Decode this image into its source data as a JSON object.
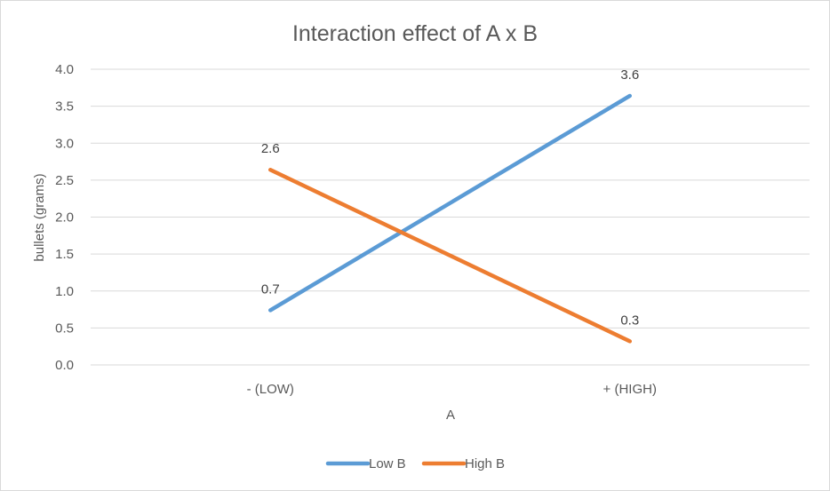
{
  "chart_data": {
    "type": "line",
    "title": "Interaction effect of A x B",
    "xlabel": "A",
    "ylabel": "bullets (grams)",
    "categories": [
      "- (LOW)",
      "+ (HIGH)"
    ],
    "ylim": [
      0,
      4.0
    ],
    "yticks": [
      "0.0",
      "0.5",
      "1.0",
      "1.5",
      "2.0",
      "2.5",
      "3.0",
      "3.5",
      "4.0"
    ],
    "grid": true,
    "legend_position": "bottom",
    "series": [
      {
        "name": "Low B",
        "values": [
          0.74,
          3.64
        ],
        "labels": [
          "0.7",
          "3.6"
        ],
        "color": "#5b9bd5"
      },
      {
        "name": "High B",
        "values": [
          2.64,
          0.32
        ],
        "labels": [
          "2.6",
          "0.3"
        ],
        "color": "#ed7d31"
      }
    ]
  }
}
